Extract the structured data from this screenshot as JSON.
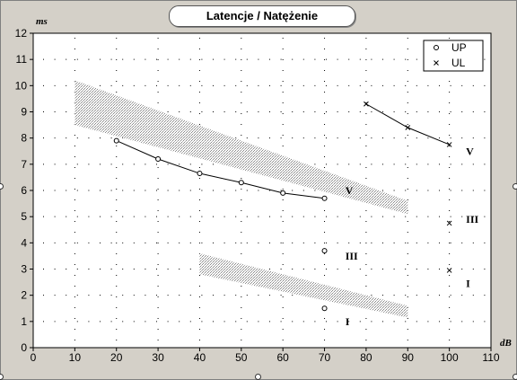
{
  "window": {
    "title": "Latencje / Natężenie"
  },
  "chart_data": {
    "type": "line",
    "title": "Latencje / Natężenie",
    "xlabel": "dB",
    "ylabel": "ms",
    "xlim": [
      0,
      110
    ],
    "ylim": [
      0,
      12
    ],
    "x_ticks": [
      0,
      10,
      20,
      30,
      40,
      50,
      60,
      70,
      80,
      90,
      100,
      110
    ],
    "y_ticks": [
      0,
      1,
      2,
      3,
      4,
      5,
      6,
      7,
      8,
      9,
      10,
      11,
      12
    ],
    "grid": "dotted",
    "legend_position": "top-right",
    "legend": [
      {
        "label": "UP",
        "marker": "o"
      },
      {
        "label": "UL",
        "marker": "x"
      }
    ],
    "series": [
      {
        "name": "UP",
        "wave": "V",
        "marker": "o",
        "connected": true,
        "x": [
          20,
          30,
          40,
          50,
          60,
          70
        ],
        "y": [
          7.9,
          7.2,
          6.65,
          6.3,
          5.9,
          5.7
        ]
      },
      {
        "name": "UP",
        "wave": "III",
        "marker": "o",
        "connected": false,
        "x": [
          70
        ],
        "y": [
          3.7
        ]
      },
      {
        "name": "UP",
        "wave": "I",
        "marker": "o",
        "connected": false,
        "x": [
          70
        ],
        "y": [
          1.5
        ]
      },
      {
        "name": "UL",
        "wave": "V",
        "marker": "x",
        "connected": true,
        "x": [
          80,
          90,
          100
        ],
        "y": [
          9.3,
          8.4,
          7.75
        ]
      },
      {
        "name": "UL",
        "wave": "III",
        "marker": "x",
        "connected": false,
        "x": [
          100
        ],
        "y": [
          4.75
        ]
      },
      {
        "name": "UL",
        "wave": "I",
        "marker": "x",
        "connected": false,
        "x": [
          100
        ],
        "y": [
          2.95
        ]
      }
    ],
    "norm_bands": [
      {
        "wave": "V",
        "x": [
          10,
          90
        ],
        "upper": [
          10.2,
          5.6
        ],
        "lower": [
          8.5,
          5.1
        ]
      },
      {
        "wave": "I",
        "x": [
          40,
          90
        ],
        "upper": [
          3.6,
          1.6
        ],
        "lower": [
          2.8,
          1.15
        ]
      }
    ],
    "annotations": [
      {
        "text": "V",
        "x": 75,
        "y": 6.0
      },
      {
        "text": "III",
        "x": 75,
        "y": 3.5
      },
      {
        "text": "I",
        "x": 75,
        "y": 1.0
      },
      {
        "text": "V",
        "x": 104,
        "y": 7.5
      },
      {
        "text": "III",
        "x": 104,
        "y": 4.9
      },
      {
        "text": "I",
        "x": 104,
        "y": 2.45
      }
    ]
  }
}
